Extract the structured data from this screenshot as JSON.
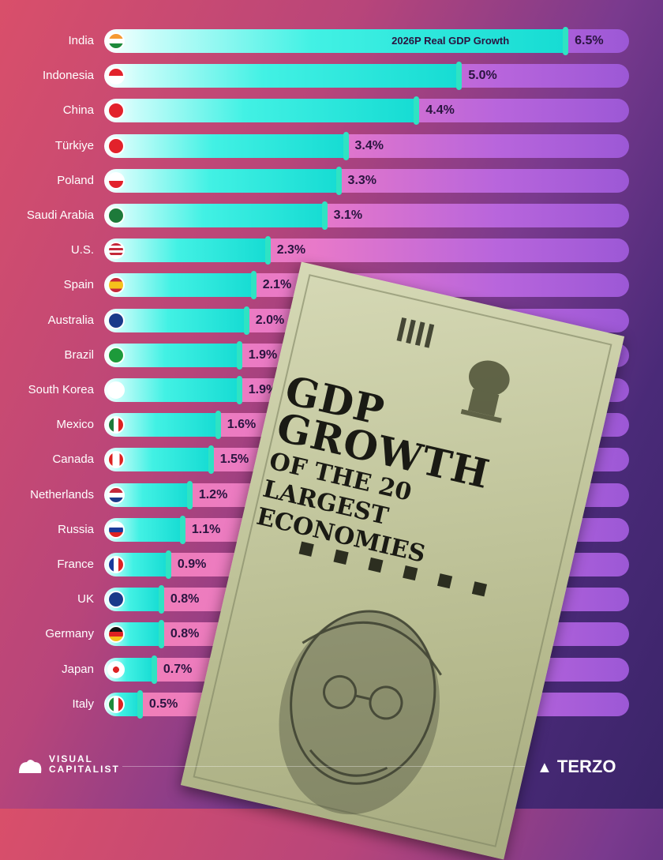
{
  "chart_data": {
    "type": "bar",
    "orientation": "horizontal",
    "title": "GDP GROWTH",
    "subtitle": "OF THE 20 LARGEST ECONOMIES",
    "series_label": "2026P Real GDP Growth",
    "unit": "%",
    "xlim": [
      0,
      7.4
    ],
    "categories": [
      "India",
      "Indonesia",
      "China",
      "Türkiye",
      "Poland",
      "Saudi Arabia",
      "U.S.",
      "Spain",
      "Australia",
      "Brazil",
      "South Korea",
      "Mexico",
      "Canada",
      "Netherlands",
      "Russia",
      "France",
      "UK",
      "Germany",
      "Japan",
      "Italy"
    ],
    "values": [
      6.5,
      5.0,
      4.4,
      3.4,
      3.3,
      3.1,
      2.3,
      2.1,
      2.0,
      1.9,
      1.9,
      1.6,
      1.5,
      1.2,
      1.1,
      0.9,
      0.8,
      0.8,
      0.7,
      0.5
    ],
    "value_labels": [
      "6.5%",
      "5.0%",
      "4.4%",
      "3.4%",
      "3.3%",
      "3.1%",
      "2.3%",
      "2.1%",
      "2.0%",
      "1.9%",
      "1.9%",
      "1.6%",
      "1.5%",
      "1.2%",
      "1.1%",
      "0.9%",
      "0.8%",
      "0.8%",
      "0.7%",
      "0.5%"
    ]
  },
  "flags": [
    "india-flag",
    "indonesia-flag",
    "china-flag",
    "turkiye-flag",
    "poland-flag",
    "saudi-arabia-flag",
    "us-flag",
    "spain-flag",
    "australia-flag",
    "brazil-flag",
    "south-korea-flag",
    "mexico-flag",
    "canada-flag",
    "netherlands-flag",
    "russia-flag",
    "france-flag",
    "uk-flag",
    "germany-flag",
    "japan-flag",
    "italy-flag"
  ],
  "title_lines": {
    "line1": "GDP",
    "line2": "GROWTH",
    "line3": "OF THE 20",
    "line4": "LARGEST",
    "line5": "ECONOMIES"
  },
  "footer": {
    "publisher_line1": "VISUAL",
    "publisher_line2": "CAPITALIST",
    "sponsor": "TERZO"
  },
  "colors": {
    "fill": "#16dcd3",
    "track": "#e879c9",
    "cap": "#2fe3c3",
    "value_text": "#2a1440"
  }
}
